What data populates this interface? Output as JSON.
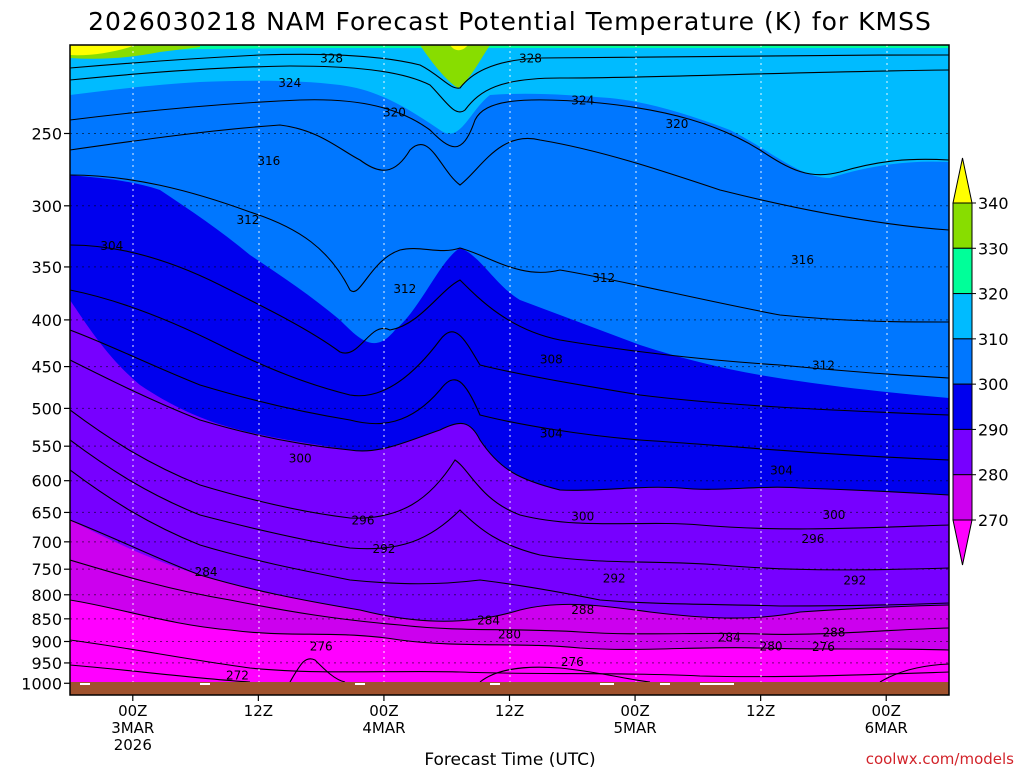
{
  "chart_data": {
    "type": "heatmap",
    "title": "2026030218 NAM Forecast Potential Temperature (K) for KMSS",
    "xlabel": "Forecast Time (UTC)",
    "ylabel": "",
    "credit": "coolwx.com/models",
    "x_ticks": [
      {
        "hour": 6,
        "line1": "00Z",
        "line2": "3MAR",
        "line3": "2026"
      },
      {
        "hour": 18,
        "line1": "12Z",
        "line2": "",
        "line3": ""
      },
      {
        "hour": 30,
        "line1": "00Z",
        "line2": "4MAR",
        "line3": ""
      },
      {
        "hour": 42,
        "line1": "12Z",
        "line2": "",
        "line3": ""
      },
      {
        "hour": 54,
        "line1": "00Z",
        "line2": "5MAR",
        "line3": ""
      },
      {
        "hour": 66,
        "line1": "12Z",
        "line2": "",
        "line3": ""
      },
      {
        "hour": 78,
        "line1": "00Z",
        "line2": "6MAR",
        "line3": ""
      }
    ],
    "xlim": [
      0,
      84
    ],
    "y_ticks": [
      "250",
      "300",
      "350",
      "400",
      "450",
      "500",
      "550",
      "600",
      "650",
      "700",
      "750",
      "800",
      "850",
      "900",
      "950",
      "1000"
    ],
    "y_tick_values": [
      250,
      300,
      350,
      400,
      450,
      500,
      550,
      600,
      650,
      700,
      750,
      800,
      850,
      900,
      950,
      1000
    ],
    "ylim_hpa": [
      1030,
      200
    ],
    "colorbar": {
      "tick_labels": [
        "340",
        "330",
        "320",
        "310",
        "300",
        "290",
        "280",
        "270"
      ],
      "levels": [
        340,
        330,
        320,
        310,
        300,
        290,
        280,
        270
      ]
    },
    "contour_labels": [
      {
        "text": "328",
        "hour": 25,
        "p": 207
      },
      {
        "text": "328",
        "hour": 44,
        "p": 207
      },
      {
        "text": "324",
        "hour": 21,
        "p": 220
      },
      {
        "text": "324",
        "hour": 49,
        "p": 230
      },
      {
        "text": "320",
        "hour": 31,
        "p": 237
      },
      {
        "text": "320",
        "hour": 58,
        "p": 244
      },
      {
        "text": "316",
        "hour": 19,
        "p": 268
      },
      {
        "text": "316",
        "hour": 70,
        "p": 344
      },
      {
        "text": "312",
        "hour": 17,
        "p": 311
      },
      {
        "text": "312",
        "hour": 32,
        "p": 370
      },
      {
        "text": "312",
        "hour": 51,
        "p": 360
      },
      {
        "text": "312",
        "hour": 72,
        "p": 449
      },
      {
        "text": "308",
        "hour": 46,
        "p": 442
      },
      {
        "text": "304",
        "hour": 4,
        "p": 332
      },
      {
        "text": "304",
        "hour": 46,
        "p": 533
      },
      {
        "text": "304",
        "hour": 68,
        "p": 585
      },
      {
        "text": "300",
        "hour": 22,
        "p": 567
      },
      {
        "text": "300",
        "hour": 49,
        "p": 657
      },
      {
        "text": "300",
        "hour": 73,
        "p": 654
      },
      {
        "text": "296",
        "hour": 28,
        "p": 663
      },
      {
        "text": "296",
        "hour": 71,
        "p": 695
      },
      {
        "text": "292",
        "hour": 30,
        "p": 713
      },
      {
        "text": "292",
        "hour": 52,
        "p": 768
      },
      {
        "text": "292",
        "hour": 75,
        "p": 772
      },
      {
        "text": "288",
        "hour": 49,
        "p": 831
      },
      {
        "text": "288",
        "hour": 73,
        "p": 880
      },
      {
        "text": "284",
        "hour": 13,
        "p": 755
      },
      {
        "text": "284",
        "hour": 40,
        "p": 854
      },
      {
        "text": "284",
        "hour": 63,
        "p": 891
      },
      {
        "text": "280",
        "hour": 42,
        "p": 884
      },
      {
        "text": "280",
        "hour": 67,
        "p": 912
      },
      {
        "text": "276",
        "hour": 24,
        "p": 911
      },
      {
        "text": "276",
        "hour": 48,
        "p": 948
      },
      {
        "text": "276",
        "hour": 72,
        "p": 913
      },
      {
        "text": "272",
        "hour": 16,
        "p": 980
      }
    ],
    "colors": {
      "above_340": "#ffff00",
      "330_340": "#88dd00",
      "320_330": "#00ff99",
      "310_320": "#00bbff",
      "300_310": "#0077ff",
      "290_300": "#0000ee",
      "280_290": "#7700ff",
      "270_280": "#cc00ee",
      "below_270": "#ff00ff",
      "terrain": "#a0522d"
    }
  }
}
